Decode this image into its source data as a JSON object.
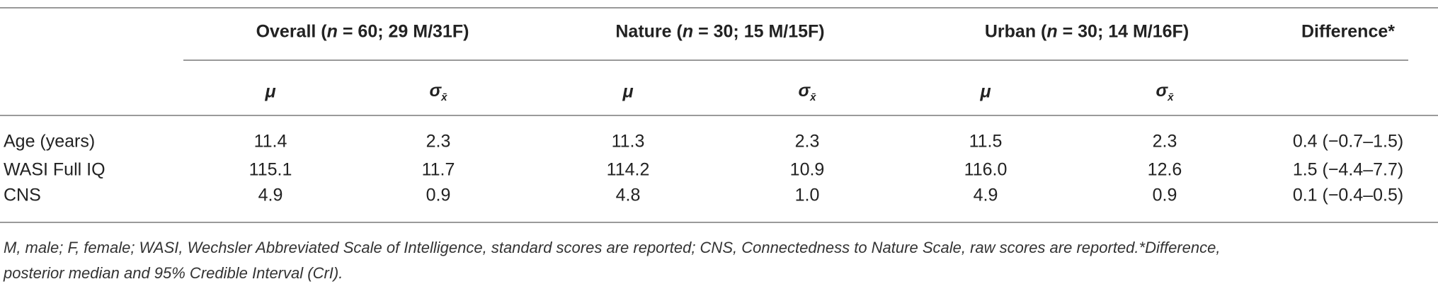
{
  "table": {
    "group_headers": [
      [
        "Overall (",
        "n",
        " = 60; 29 M/31F)"
      ],
      [
        "Nature (",
        "n",
        " = 30; 15 M/15F)"
      ],
      [
        "Urban (",
        "n",
        " = 30; 14 M/16F)"
      ],
      [
        "Difference*"
      ]
    ],
    "sub_headers": [
      [
        "μ"
      ],
      [
        "σ",
        "x̄"
      ],
      [
        "μ"
      ],
      [
        "σ",
        "x̄"
      ],
      [
        "μ"
      ],
      [
        "σ",
        "x̄"
      ]
    ],
    "rows": [
      [
        "Age (years)",
        "11.4",
        "2.3",
        "11.3",
        "2.3",
        "11.5",
        "2.3",
        "0.4 (−0.7–1.5)"
      ],
      [
        "WASI Full IQ",
        "115.1",
        "11.7",
        "114.2",
        "10.9",
        "116.0",
        "12.6",
        "1.5 (−4.4–7.7)"
      ],
      [
        "CNS",
        "4.9",
        "0.9",
        "4.8",
        "1.0",
        "4.9",
        "0.9",
        "0.1 (−0.4–0.5)"
      ]
    ]
  },
  "footnote": [
    "M, male; F, female; WASI, Wechsler Abbreviated Scale of Intelligence, standard scores are reported; CNS, Connectedness to Nature Scale, raw scores are reported.*Difference,",
    "posterior median and 95% Credible Interval (CrI)."
  ]
}
